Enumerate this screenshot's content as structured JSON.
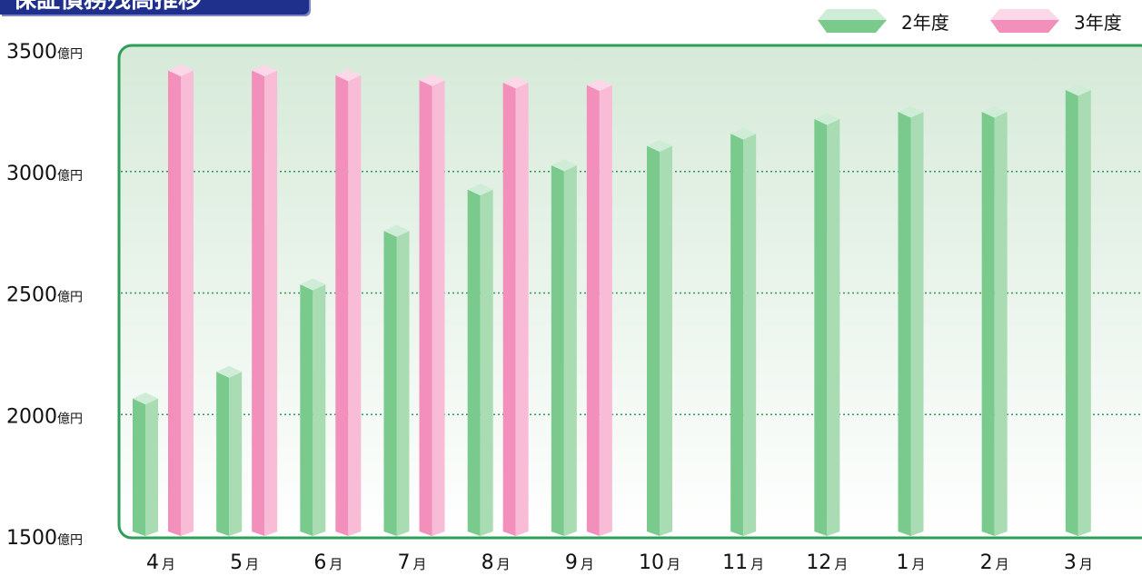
{
  "title": "保証債務残高推移",
  "colors": {
    "series_2_front": "#7ac98d",
    "series_2_side": "#a9dcb3",
    "series_2_top": "#cfedd6",
    "series_3_front": "#f28fba",
    "series_3_side": "#f8bcd6",
    "series_3_top": "#fbd7e7",
    "plot_border": "#2f9e57",
    "grid": "#2e9a55",
    "title_bg": "#1f2f8c"
  },
  "legend": [
    {
      "label": "2年度",
      "series": 0
    },
    {
      "label": "3年度",
      "series": 1
    }
  ],
  "chart_data": {
    "type": "bar",
    "title": "保証債務残高推移",
    "categories": [
      "4",
      "5",
      "6",
      "7",
      "8",
      "9",
      "10",
      "11",
      "12",
      "1",
      "2",
      "3"
    ],
    "category_unit": "月",
    "series": [
      {
        "name": "2年度",
        "values": [
          2090,
          2200,
          2560,
          2780,
          2950,
          3050,
          3130,
          3180,
          3240,
          3270,
          3270,
          3360
        ]
      },
      {
        "name": "3年度",
        "values": [
          3440,
          3440,
          3420,
          3400,
          3390,
          3380,
          null,
          null,
          null,
          null,
          null,
          null
        ]
      }
    ],
    "ylim": [
      1500,
      3500
    ],
    "yticks": [
      1500,
      2000,
      2500,
      3000,
      3500
    ],
    "y_unit": "億円",
    "grid": true,
    "legend_position": "top-right"
  }
}
